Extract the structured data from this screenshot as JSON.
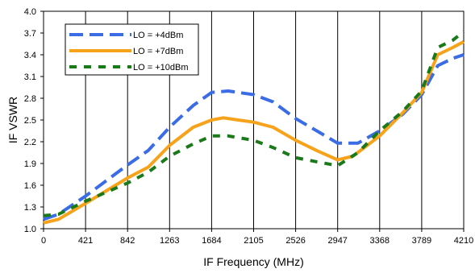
{
  "chart_data": {
    "type": "line",
    "title": "",
    "xlabel": "IF Frequency (MHz)",
    "ylabel": "IF VSWR",
    "xlim": [
      0,
      4210
    ],
    "ylim": [
      1.0,
      4.0
    ],
    "xticks": [
      0,
      421,
      842,
      1263,
      1684,
      2105,
      2526,
      2947,
      3368,
      3789,
      4210
    ],
    "xtick_labels": [
      "0",
      "421",
      "842",
      "1263",
      "1684",
      "2105",
      "2526",
      "2947",
      "3368",
      "3789",
      "4210"
    ],
    "yticks": [
      1.0,
      1.3,
      1.6,
      1.9,
      2.2,
      2.5,
      2.8,
      3.1,
      3.4,
      3.7,
      4.0
    ],
    "ytick_labels": [
      "1.0",
      "1.3",
      "1.6",
      "1.9",
      "2.2",
      "2.5",
      "2.8",
      "3.1",
      "3.4",
      "3.7",
      "4.0"
    ],
    "grid": "vertical",
    "legend_position": "top-left",
    "series": [
      {
        "name": "LO = +4dBm",
        "color": "#3A6CE6",
        "style": "dashed",
        "points": [
          [
            0,
            1.13
          ],
          [
            150,
            1.2
          ],
          [
            421,
            1.45
          ],
          [
            842,
            1.88
          ],
          [
            1050,
            2.08
          ],
          [
            1263,
            2.4
          ],
          [
            1500,
            2.7
          ],
          [
            1684,
            2.88
          ],
          [
            1850,
            2.9
          ],
          [
            2105,
            2.85
          ],
          [
            2300,
            2.75
          ],
          [
            2526,
            2.52
          ],
          [
            2800,
            2.3
          ],
          [
            2947,
            2.18
          ],
          [
            3150,
            2.18
          ],
          [
            3368,
            2.35
          ],
          [
            3600,
            2.58
          ],
          [
            3789,
            2.85
          ],
          [
            3950,
            3.25
          ],
          [
            4100,
            3.35
          ],
          [
            4210,
            3.4
          ]
        ]
      },
      {
        "name": "LO = +7dBm",
        "color": "#F7A21B",
        "style": "solid",
        "points": [
          [
            0,
            1.08
          ],
          [
            150,
            1.13
          ],
          [
            421,
            1.35
          ],
          [
            842,
            1.7
          ],
          [
            1050,
            1.85
          ],
          [
            1263,
            2.15
          ],
          [
            1500,
            2.4
          ],
          [
            1684,
            2.5
          ],
          [
            1800,
            2.53
          ],
          [
            1950,
            2.5
          ],
          [
            2105,
            2.47
          ],
          [
            2300,
            2.4
          ],
          [
            2526,
            2.22
          ],
          [
            2750,
            2.07
          ],
          [
            2947,
            1.95
          ],
          [
            3100,
            2.0
          ],
          [
            3368,
            2.28
          ],
          [
            3600,
            2.6
          ],
          [
            3789,
            2.88
          ],
          [
            3950,
            3.4
          ],
          [
            4100,
            3.5
          ],
          [
            4210,
            3.58
          ]
        ]
      },
      {
        "name": "LO = +10dBm",
        "color": "#1A7A1A",
        "style": "dashed",
        "points": [
          [
            0,
            1.18
          ],
          [
            150,
            1.2
          ],
          [
            421,
            1.38
          ],
          [
            842,
            1.63
          ],
          [
            1050,
            1.78
          ],
          [
            1263,
            2.0
          ],
          [
            1500,
            2.17
          ],
          [
            1684,
            2.28
          ],
          [
            1850,
            2.28
          ],
          [
            2105,
            2.22
          ],
          [
            2300,
            2.12
          ],
          [
            2526,
            1.98
          ],
          [
            2750,
            1.92
          ],
          [
            2947,
            1.87
          ],
          [
            3150,
            2.05
          ],
          [
            3368,
            2.35
          ],
          [
            3600,
            2.62
          ],
          [
            3789,
            2.9
          ],
          [
            3950,
            3.5
          ],
          [
            4100,
            3.6
          ],
          [
            4210,
            3.72
          ]
        ]
      }
    ]
  }
}
